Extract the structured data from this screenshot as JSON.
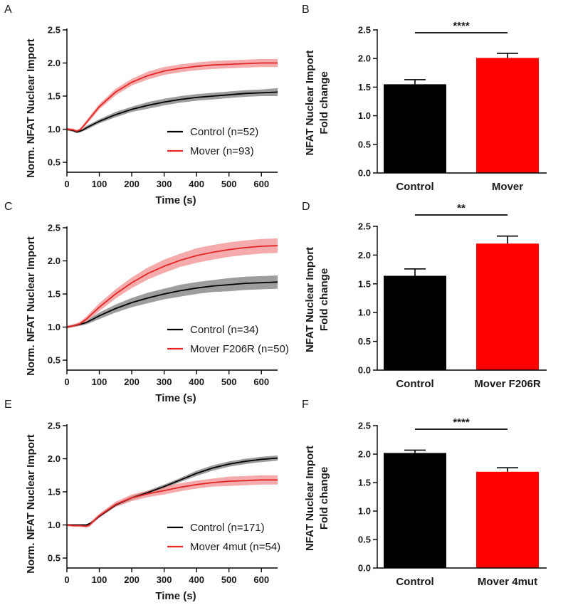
{
  "figure": {
    "colors": {
      "control": "#000000",
      "mover": "#e32626",
      "control_band": "#8c8c8c",
      "mover_band": "#f28f8f",
      "bar_mover": "#ff0000"
    }
  },
  "chart_data": [
    {
      "id": "A",
      "type": "line",
      "panel_label": "A",
      "xlabel": "Time (s)",
      "ylabel": "Norm. NFAT Nuclear Import",
      "xlim": [
        0,
        650
      ],
      "ylim": [
        0.35,
        2.5
      ],
      "xticks": [
        0,
        100,
        200,
        300,
        400,
        500,
        600
      ],
      "yticks": [
        0.5,
        1.0,
        1.5,
        2.0,
        2.5
      ],
      "ytick_labels": [
        "0.5",
        "1.0",
        "1.5",
        "2.0",
        "2.5"
      ],
      "series": [
        {
          "name": "Control (n=52)",
          "color": "#000000",
          "band": "#8c8c8c",
          "x": [
            0,
            20,
            30,
            40,
            50,
            60,
            80,
            100,
            150,
            200,
            250,
            300,
            350,
            400,
            450,
            500,
            550,
            600,
            650
          ],
          "y": [
            1.0,
            0.98,
            0.96,
            0.97,
            0.99,
            1.02,
            1.07,
            1.12,
            1.22,
            1.3,
            1.36,
            1.41,
            1.45,
            1.48,
            1.5,
            1.52,
            1.54,
            1.55,
            1.56
          ],
          "err": [
            0.02,
            0.02,
            0.02,
            0.02,
            0.02,
            0.03,
            0.03,
            0.03,
            0.04,
            0.04,
            0.05,
            0.05,
            0.05,
            0.05,
            0.05,
            0.05,
            0.05,
            0.05,
            0.06
          ]
        },
        {
          "name": "Mover (n=93)",
          "color": "#e32626",
          "band": "#f28f8f",
          "x": [
            0,
            20,
            30,
            40,
            50,
            60,
            80,
            100,
            150,
            200,
            250,
            300,
            350,
            400,
            450,
            500,
            550,
            600,
            650
          ],
          "y": [
            1.0,
            0.99,
            0.97,
            0.99,
            1.04,
            1.1,
            1.22,
            1.34,
            1.56,
            1.71,
            1.81,
            1.88,
            1.92,
            1.95,
            1.97,
            1.98,
            1.99,
            2.0,
            2.0
          ],
          "err": [
            0.02,
            0.02,
            0.02,
            0.02,
            0.03,
            0.03,
            0.04,
            0.04,
            0.05,
            0.05,
            0.06,
            0.06,
            0.06,
            0.06,
            0.06,
            0.06,
            0.06,
            0.06,
            0.06
          ]
        }
      ],
      "legend_position": "lower-right"
    },
    {
      "id": "B",
      "type": "bar",
      "panel_label": "B",
      "ylabel_line1": "NFAT Nuclear Import",
      "ylabel_line2": "Fold change",
      "categories": [
        "Control",
        "Mover"
      ],
      "values": [
        1.55,
        2.01
      ],
      "errors": [
        0.08,
        0.08
      ],
      "bar_colors": [
        "#000000",
        "#ff0000"
      ],
      "ylim": [
        0,
        2.5
      ],
      "yticks": [
        0,
        0.5,
        1.0,
        1.5,
        2.0,
        2.5
      ],
      "ytick_labels": [
        "0.0",
        "0.5",
        "1.0",
        "1.5",
        "2.0",
        "2.5"
      ],
      "significance": "****"
    },
    {
      "id": "C",
      "type": "line",
      "panel_label": "C",
      "xlabel": "Time (s)",
      "ylabel": "Norm. NFAT Nuclear Import",
      "xlim": [
        0,
        650
      ],
      "ylim": [
        0.35,
        2.5
      ],
      "xticks": [
        0,
        100,
        200,
        300,
        400,
        500,
        600
      ],
      "yticks": [
        0.5,
        1.0,
        1.5,
        2.0,
        2.5
      ],
      "ytick_labels": [
        "0.5",
        "1.0",
        "1.5",
        "2.0",
        "2.5"
      ],
      "series": [
        {
          "name": "Control (n=34)",
          "color": "#000000",
          "band": "#8c8c8c",
          "x": [
            0,
            20,
            40,
            60,
            80,
            100,
            150,
            200,
            250,
            300,
            350,
            400,
            450,
            500,
            550,
            600,
            650
          ],
          "y": [
            1.0,
            1.02,
            1.04,
            1.07,
            1.12,
            1.17,
            1.28,
            1.37,
            1.44,
            1.5,
            1.55,
            1.59,
            1.62,
            1.64,
            1.66,
            1.67,
            1.68
          ],
          "err": [
            0.02,
            0.02,
            0.02,
            0.03,
            0.04,
            0.05,
            0.06,
            0.07,
            0.08,
            0.08,
            0.09,
            0.09,
            0.09,
            0.1,
            0.1,
            0.1,
            0.1
          ]
        },
        {
          "name": "Mover F206R (n=50)",
          "color": "#e32626",
          "band": "#f28f8f",
          "x": [
            0,
            20,
            40,
            60,
            80,
            100,
            150,
            200,
            250,
            300,
            350,
            400,
            450,
            500,
            550,
            600,
            650
          ],
          "y": [
            1.0,
            1.02,
            1.05,
            1.12,
            1.21,
            1.3,
            1.5,
            1.67,
            1.81,
            1.92,
            2.01,
            2.08,
            2.13,
            2.17,
            2.2,
            2.22,
            2.23
          ],
          "err": [
            0.02,
            0.02,
            0.03,
            0.04,
            0.05,
            0.06,
            0.07,
            0.08,
            0.09,
            0.1,
            0.1,
            0.11,
            0.11,
            0.11,
            0.11,
            0.11,
            0.11
          ]
        }
      ],
      "legend_position": "lower-right"
    },
    {
      "id": "D",
      "type": "bar",
      "panel_label": "D",
      "ylabel_line1": "NFAT Nuclear Import",
      "ylabel_line2": "Fold change",
      "categories": [
        "Control",
        "Mover F206R"
      ],
      "values": [
        1.64,
        2.2
      ],
      "errors": [
        0.12,
        0.13
      ],
      "bar_colors": [
        "#000000",
        "#ff0000"
      ],
      "ylim": [
        0,
        2.5
      ],
      "yticks": [
        0,
        0.5,
        1.0,
        1.5,
        2.0,
        2.5
      ],
      "ytick_labels": [
        "0.0",
        "0.5",
        "1.0",
        "1.5",
        "2.0",
        "2.5"
      ],
      "significance": "**"
    },
    {
      "id": "E",
      "type": "line",
      "panel_label": "E",
      "xlabel": "Time (s)",
      "ylabel": "Norm. NFAT Nuclear Import",
      "xlim": [
        0,
        650
      ],
      "ylim": [
        0.35,
        2.5
      ],
      "xticks": [
        0,
        100,
        200,
        300,
        400,
        500,
        600
      ],
      "yticks": [
        0.5,
        1.0,
        1.5,
        2.0,
        2.5
      ],
      "ytick_labels": [
        "0.5",
        "1.0",
        "1.5",
        "2.0",
        "2.5"
      ],
      "series": [
        {
          "name": "Control (n=171)",
          "color": "#000000",
          "band": "#8c8c8c",
          "x": [
            0,
            20,
            40,
            60,
            70,
            80,
            100,
            150,
            200,
            250,
            300,
            350,
            400,
            450,
            500,
            550,
            600,
            650
          ],
          "y": [
            1.0,
            1.0,
            1.0,
            1.0,
            1.02,
            1.05,
            1.13,
            1.3,
            1.41,
            1.49,
            1.58,
            1.68,
            1.78,
            1.86,
            1.92,
            1.96,
            1.99,
            2.01
          ],
          "err": [
            0.01,
            0.01,
            0.01,
            0.01,
            0.01,
            0.02,
            0.02,
            0.02,
            0.03,
            0.03,
            0.03,
            0.03,
            0.04,
            0.04,
            0.04,
            0.04,
            0.04,
            0.04
          ]
        },
        {
          "name": "Mover 4mut (n=54)",
          "color": "#e32626",
          "band": "#f28f8f",
          "x": [
            0,
            20,
            40,
            60,
            70,
            80,
            100,
            150,
            200,
            250,
            300,
            350,
            400,
            450,
            500,
            550,
            600,
            650
          ],
          "y": [
            1.0,
            0.99,
            0.99,
            0.98,
            1.0,
            1.05,
            1.14,
            1.31,
            1.41,
            1.47,
            1.52,
            1.57,
            1.61,
            1.64,
            1.66,
            1.67,
            1.68,
            1.68
          ],
          "err": [
            0.02,
            0.02,
            0.02,
            0.02,
            0.03,
            0.03,
            0.03,
            0.04,
            0.05,
            0.05,
            0.06,
            0.06,
            0.06,
            0.06,
            0.07,
            0.07,
            0.07,
            0.07
          ]
        }
      ],
      "legend_position": "lower-right"
    },
    {
      "id": "F",
      "type": "bar",
      "panel_label": "F",
      "ylabel_line1": "NFAT Nuclear Import",
      "ylabel_line2": "Fold change",
      "categories": [
        "Control",
        "Mover 4mut"
      ],
      "values": [
        2.02,
        1.69
      ],
      "errors": [
        0.05,
        0.07
      ],
      "bar_colors": [
        "#000000",
        "#ff0000"
      ],
      "ylim": [
        0,
        2.5
      ],
      "yticks": [
        0,
        0.5,
        1.0,
        1.5,
        2.0,
        2.5
      ],
      "ytick_labels": [
        "0.0",
        "0.5",
        "1.0",
        "1.5",
        "2.0",
        "2.5"
      ],
      "significance": "****"
    }
  ]
}
